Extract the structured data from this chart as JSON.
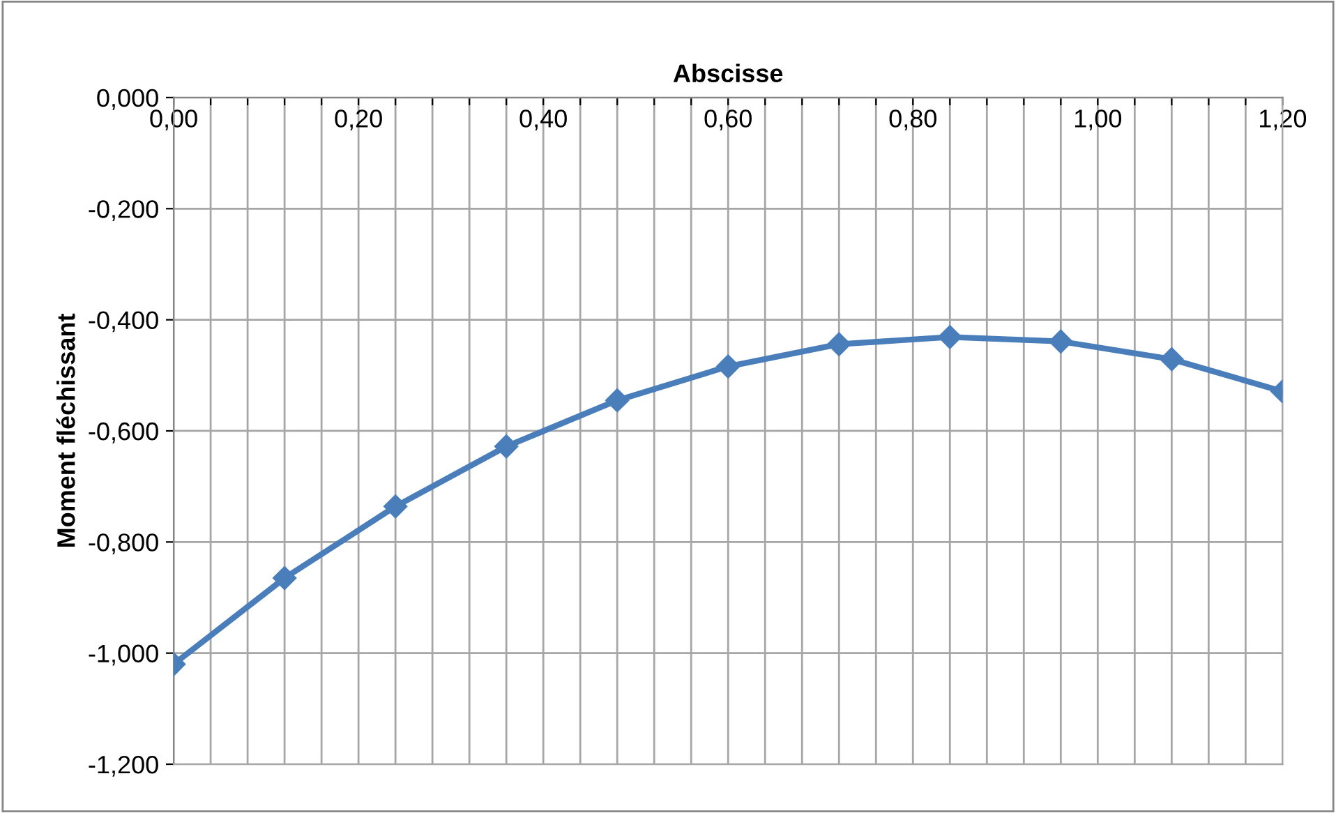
{
  "chart_data": {
    "type": "line",
    "xlabel": "Abscisse",
    "ylabel": "Moment fléchissant",
    "x": [
      0,
      0.12,
      0.24,
      0.36,
      0.48,
      0.6,
      0.72,
      0.84,
      0.96,
      1.08,
      1.2
    ],
    "series": [
      {
        "color": "#4a7ebb",
        "values": [
          -1.02,
          -0.865,
          -0.736,
          -0.628,
          -0.545,
          -0.484,
          -0.444,
          -0.431,
          -0.439,
          -0.471,
          -0.529
        ]
      }
    ],
    "xlim": [
      0,
      1.2
    ],
    "ylim": [
      -1.2,
      0
    ],
    "xticks": [
      {
        "value": 0,
        "label": "0,00"
      },
      {
        "value": 0.04,
        "label": null
      },
      {
        "value": 0.08,
        "label": null
      },
      {
        "value": 0.12,
        "label": null
      },
      {
        "value": 0.16,
        "label": null
      },
      {
        "value": 0.2,
        "label": "0,20"
      },
      {
        "value": 0.24,
        "label": null
      },
      {
        "value": 0.28,
        "label": null
      },
      {
        "value": 0.32,
        "label": null
      },
      {
        "value": 0.36,
        "label": null
      },
      {
        "value": 0.4,
        "label": "0,40"
      },
      {
        "value": 0.44,
        "label": null
      },
      {
        "value": 0.48,
        "label": null
      },
      {
        "value": 0.52,
        "label": null
      },
      {
        "value": 0.56,
        "label": null
      },
      {
        "value": 0.6,
        "label": "0,60"
      },
      {
        "value": 0.64,
        "label": null
      },
      {
        "value": 0.68,
        "label": null
      },
      {
        "value": 0.72,
        "label": null
      },
      {
        "value": 0.76,
        "label": null
      },
      {
        "value": 0.8,
        "label": "0,80"
      },
      {
        "value": 0.84,
        "label": null
      },
      {
        "value": 0.88,
        "label": null
      },
      {
        "value": 0.92,
        "label": null
      },
      {
        "value": 0.96,
        "label": null
      },
      {
        "value": 1.0,
        "label": "1,00"
      },
      {
        "value": 1.04,
        "label": null
      },
      {
        "value": 1.08,
        "label": null
      },
      {
        "value": 1.12,
        "label": null
      },
      {
        "value": 1.16,
        "label": null
      },
      {
        "value": 1.2,
        "label": "1,20"
      }
    ],
    "yticks": [
      {
        "value": 0,
        "label": "0,000"
      },
      {
        "value": -0.2,
        "label": "-0,200"
      },
      {
        "value": -0.4,
        "label": "-0,400"
      },
      {
        "value": -0.6,
        "label": "-0,600"
      },
      {
        "value": -0.8,
        "label": "-0,800"
      },
      {
        "value": -1.0,
        "label": "-1,000"
      },
      {
        "value": -1.2,
        "label": "-1,200"
      }
    ],
    "grid": true,
    "marker": "diamond",
    "line_style": "solid",
    "legend": false
  }
}
